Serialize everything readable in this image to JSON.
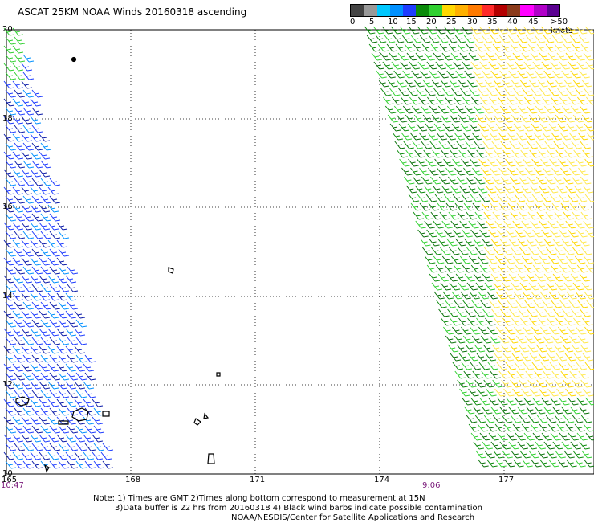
{
  "title": "ASCAT 25KM NOAA Winds 20160318 ascending",
  "legend": {
    "colors": [
      "#444444",
      "#999999",
      "#00c8ff",
      "#0090ff",
      "#1e3cff",
      "#0a8a0a",
      "#30d030",
      "#ffd800",
      "#ffb000",
      "#ff7a00",
      "#ff2a2a",
      "#b40000",
      "#8b3a1a",
      "#ff00ff",
      "#b000c8",
      "#5a0090"
    ],
    "tick_labels": [
      "0",
      "5",
      "10",
      "15",
      "20",
      "25",
      "30",
      "35",
      "40",
      "45",
      ">50 knots"
    ]
  },
  "axes": {
    "lat_labels": [
      "20",
      "18",
      "16",
      "14",
      "12",
      "10"
    ],
    "lon_labels": [
      "165",
      "168",
      "171",
      "174",
      "177"
    ]
  },
  "times": {
    "left": "10:47",
    "right": "9:06"
  },
  "note": {
    "line1": "Note: 1) Times are GMT 2)Times along bottom correspond to measurement at 15N",
    "line2": "3)Data buffer is 22 hrs from 20160318 4) Black wind barbs indicate possible contamination",
    "line3": "NOAA/NESDIS/Center for Satellite Applications and Research"
  }
}
